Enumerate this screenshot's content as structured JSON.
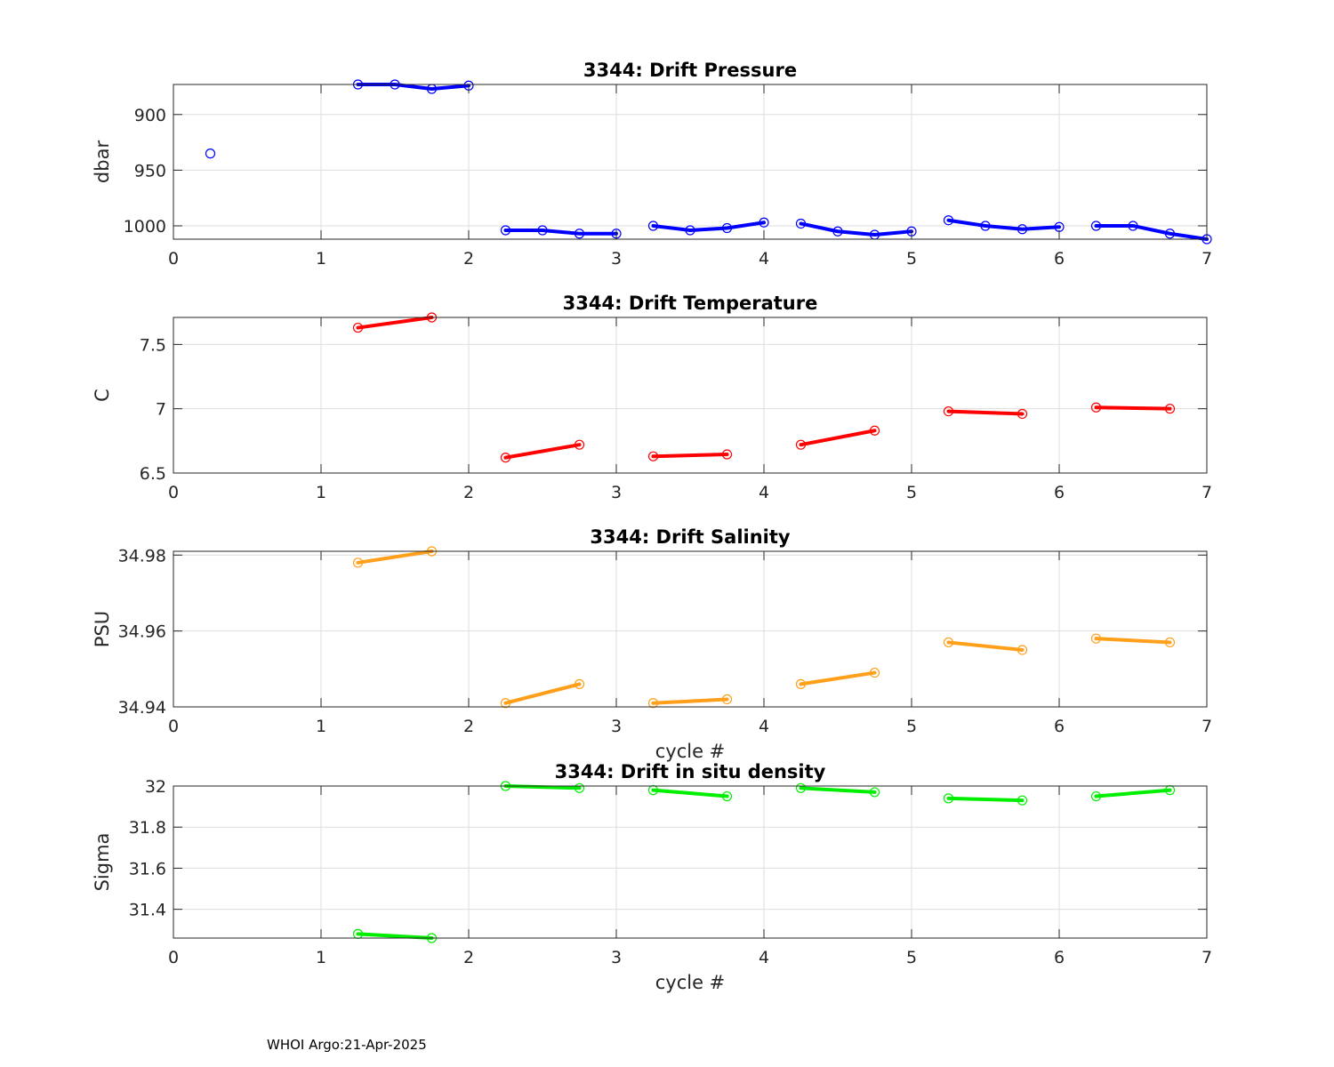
{
  "footer": "WHOI Argo:21-Apr-2025",
  "chart_data": [
    {
      "type": "line",
      "title": "3344: Drift Pressure",
      "xlabel": "",
      "ylabel": "dbar",
      "xlim": [
        0,
        7
      ],
      "ylim": [
        873,
        1012
      ],
      "y_reversed": true,
      "grid": true,
      "xticks": [
        0,
        1,
        2,
        3,
        4,
        5,
        6,
        7
      ],
      "yticks": [
        900,
        950,
        1000
      ],
      "color": "#0000ff",
      "segments": [
        {
          "x": [
            0.25
          ],
          "y": [
            935
          ]
        },
        {
          "x": [
            1.25,
            1.5,
            1.75,
            2.0
          ],
          "y": [
            873,
            873,
            877,
            874
          ]
        },
        {
          "x": [
            2.25,
            2.5,
            2.75,
            3.0
          ],
          "y": [
            1004,
            1004,
            1007,
            1007
          ]
        },
        {
          "x": [
            3.25,
            3.5,
            3.75,
            4.0
          ],
          "y": [
            1000,
            1004,
            1002,
            997
          ]
        },
        {
          "x": [
            4.25,
            4.5,
            4.75,
            5.0
          ],
          "y": [
            998,
            1005,
            1008,
            1005
          ]
        },
        {
          "x": [
            5.25,
            5.5,
            5.75,
            6.0
          ],
          "y": [
            995,
            1000,
            1003,
            1001
          ]
        },
        {
          "x": [
            6.25,
            6.5,
            6.75,
            7.0
          ],
          "y": [
            1000,
            1000,
            1007,
            1012
          ]
        }
      ]
    },
    {
      "type": "line",
      "title": "3344: Drift Temperature",
      "xlabel": "",
      "ylabel": "C",
      "xlim": [
        0,
        7
      ],
      "ylim": [
        6.5,
        7.71
      ],
      "grid": true,
      "xticks": [
        0,
        1,
        2,
        3,
        4,
        5,
        6,
        7
      ],
      "yticks": [
        6.5,
        7,
        7.5
      ],
      "color": "#ff0000",
      "segments": [
        {
          "x": [
            1.25,
            1.75
          ],
          "y": [
            7.63,
            7.71
          ]
        },
        {
          "x": [
            2.25,
            2.75
          ],
          "y": [
            6.62,
            6.72
          ]
        },
        {
          "x": [
            3.25,
            3.75
          ],
          "y": [
            6.63,
            6.645
          ]
        },
        {
          "x": [
            4.25,
            4.75
          ],
          "y": [
            6.72,
            6.83
          ]
        },
        {
          "x": [
            5.25,
            5.75
          ],
          "y": [
            6.98,
            6.96
          ]
        },
        {
          "x": [
            6.25,
            6.75
          ],
          "y": [
            7.01,
            7.0
          ]
        }
      ]
    },
    {
      "type": "line",
      "title": "3344: Drift Salinity",
      "xlabel": "cycle #",
      "ylabel": "PSU",
      "xlim": [
        0,
        7
      ],
      "ylim": [
        34.94,
        34.981
      ],
      "grid": true,
      "xticks": [
        0,
        1,
        2,
        3,
        4,
        5,
        6,
        7
      ],
      "yticks": [
        34.94,
        34.96,
        34.98
      ],
      "color": "#ff9f1a",
      "segments": [
        {
          "x": [
            1.25,
            1.75
          ],
          "y": [
            34.978,
            34.981
          ]
        },
        {
          "x": [
            2.25,
            2.75
          ],
          "y": [
            34.941,
            34.946
          ]
        },
        {
          "x": [
            3.25,
            3.75
          ],
          "y": [
            34.941,
            34.942
          ]
        },
        {
          "x": [
            4.25,
            4.75
          ],
          "y": [
            34.946,
            34.949
          ]
        },
        {
          "x": [
            5.25,
            5.75
          ],
          "y": [
            34.957,
            34.955
          ]
        },
        {
          "x": [
            6.25,
            6.75
          ],
          "y": [
            34.958,
            34.957
          ]
        }
      ]
    },
    {
      "type": "line",
      "title": "3344: Drift in situ density",
      "xlabel": "cycle #",
      "ylabel": "Sigma",
      "xlim": [
        0,
        7
      ],
      "ylim": [
        31.26,
        32.0
      ],
      "grid": true,
      "xticks": [
        0,
        1,
        2,
        3,
        4,
        5,
        6,
        7
      ],
      "yticks": [
        31.4,
        31.6,
        31.8,
        32
      ],
      "color": "#00ee00",
      "segments": [
        {
          "x": [
            1.25,
            1.75
          ],
          "y": [
            31.28,
            31.26
          ]
        },
        {
          "x": [
            2.25,
            2.75
          ],
          "y": [
            32.0,
            31.99
          ]
        },
        {
          "x": [
            3.25,
            3.75
          ],
          "y": [
            31.98,
            31.95
          ]
        },
        {
          "x": [
            4.25,
            4.75
          ],
          "y": [
            31.99,
            31.97
          ]
        },
        {
          "x": [
            5.25,
            5.75
          ],
          "y": [
            31.94,
            31.93
          ]
        },
        {
          "x": [
            6.25,
            6.75
          ],
          "y": [
            31.95,
            31.98
          ]
        }
      ]
    }
  ]
}
